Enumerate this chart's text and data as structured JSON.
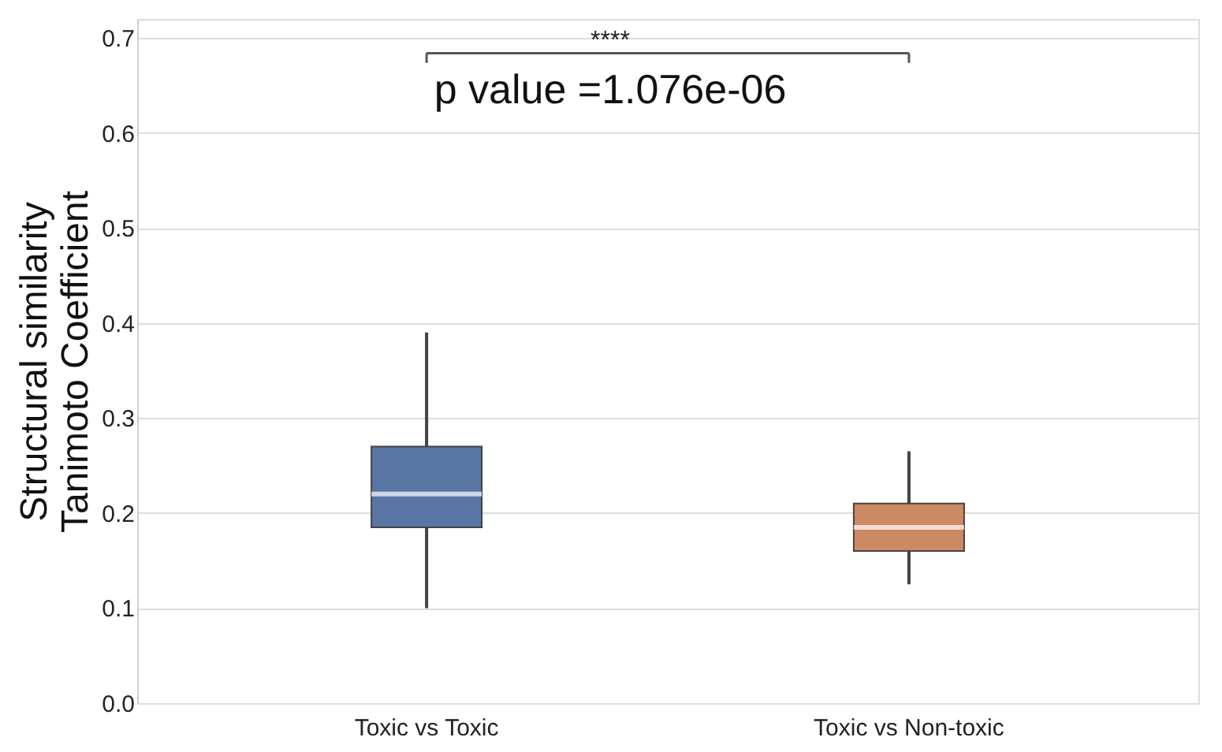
{
  "chart_data": {
    "type": "box",
    "ylabel": "Structural similarity\nTanimoto Coefficient",
    "categories": [
      "Toxic vs Toxic",
      "Toxic vs Non-toxic"
    ],
    "colors": [
      "#5875a4",
      "#cc8963"
    ],
    "boxes": [
      {
        "low": 0.1,
        "q1": 0.185,
        "median": 0.22,
        "q3": 0.27,
        "high": 0.39
      },
      {
        "low": 0.125,
        "q1": 0.16,
        "median": 0.185,
        "q3": 0.21,
        "high": 0.265
      }
    ],
    "ylim": [
      0,
      0.72
    ],
    "yticks": [
      {
        "value": 0,
        "label": "0.0"
      },
      0.1,
      0.2,
      0.3,
      0.4,
      0.5,
      0.6,
      0.7
    ],
    "grid": "y",
    "annotations": [
      "****",
      "p value =1.076e-06"
    ]
  }
}
